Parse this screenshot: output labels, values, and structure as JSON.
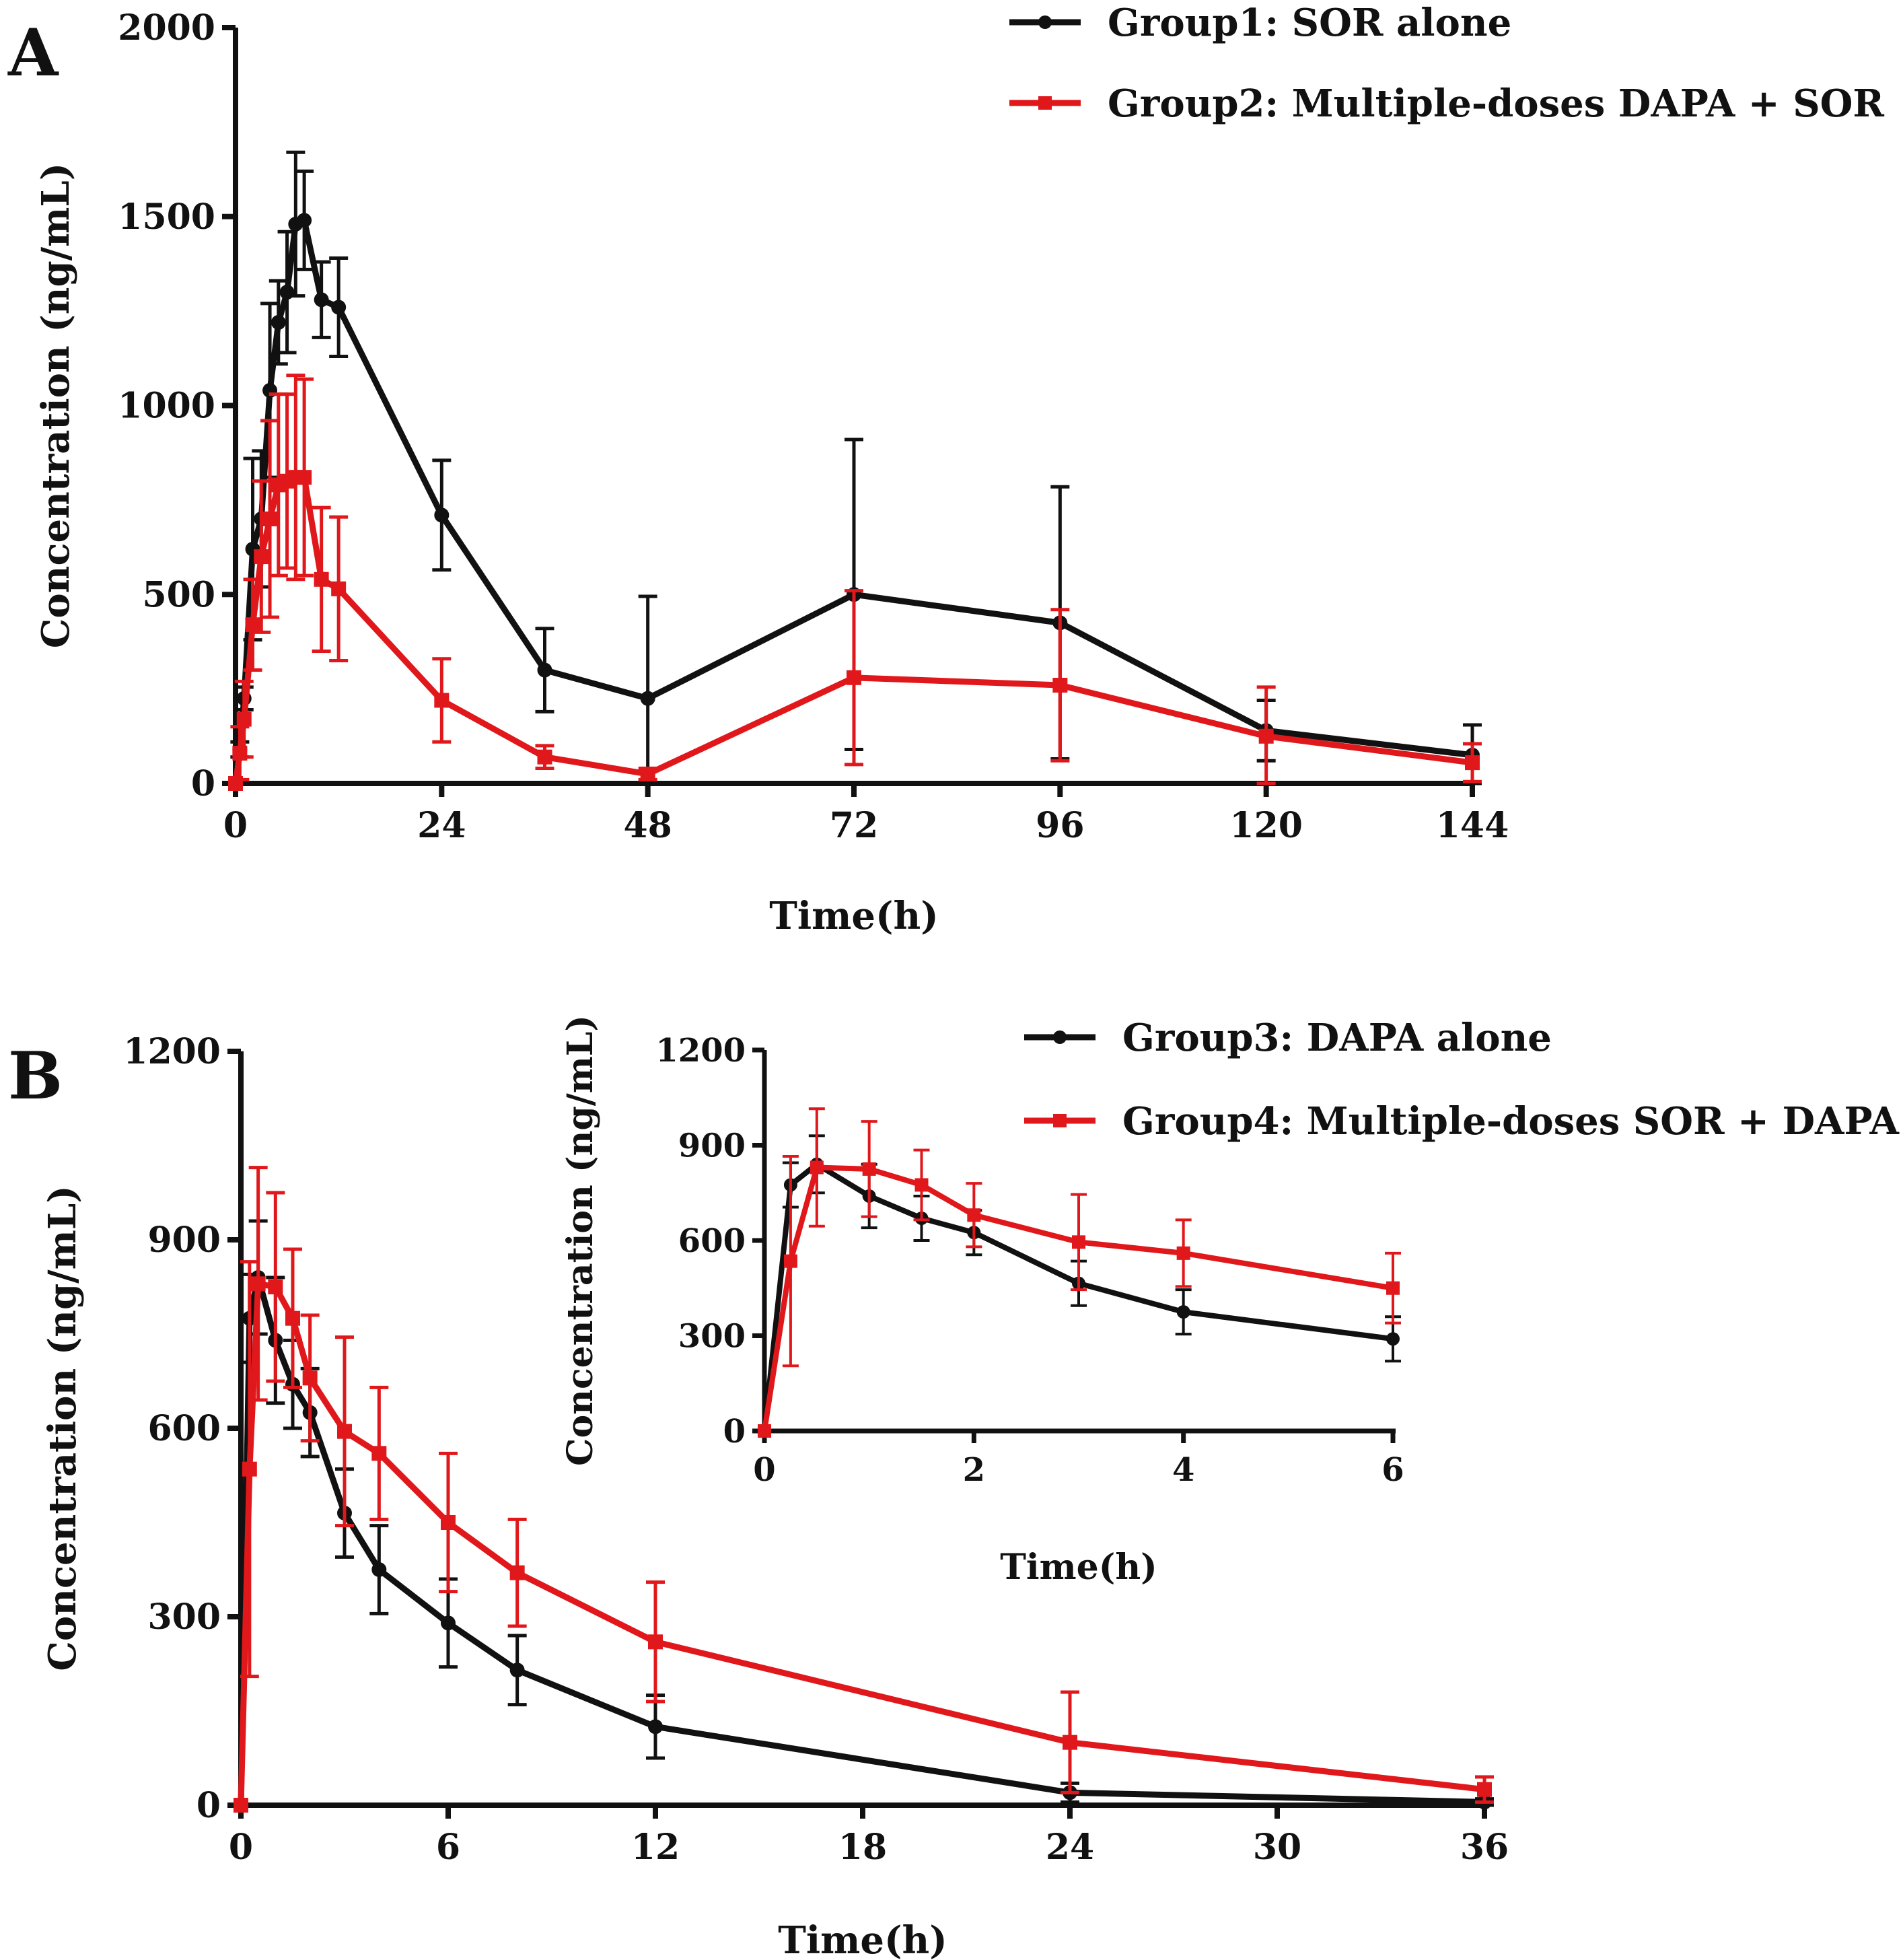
{
  "colors": {
    "black": "#111111",
    "red": "#e0181b"
  },
  "chart_data": [
    {
      "panel": "A",
      "type": "line",
      "xlabel": "Time(h)",
      "ylabel": "Concentration (ng/mL)",
      "xlim": [
        0,
        144
      ],
      "ylim": [
        0,
        2000
      ],
      "xticks": [
        0,
        24,
        48,
        72,
        96,
        120,
        144
      ],
      "yticks": [
        0,
        500,
        1000,
        1500,
        2000
      ],
      "grid": false,
      "legend_position": "top-right",
      "series": [
        {
          "name": "Group1: SOR alone",
          "color": "#111111",
          "marker": "circle",
          "x": [
            0,
            0.5,
            1,
            2,
            3,
            4,
            5,
            6,
            7,
            8,
            10,
            12,
            24,
            36,
            48,
            72,
            96,
            120,
            144
          ],
          "y": [
            0,
            90,
            225,
            620,
            700,
            1040,
            1220,
            1300,
            1480,
            1490,
            1280,
            1260,
            710,
            300,
            225,
            500,
            425,
            140,
            75
          ],
          "err": [
            0,
            20,
            30,
            240,
            180,
            230,
            110,
            160,
            190,
            130,
            100,
            130,
            145,
            110,
            270,
            410,
            360,
            80,
            80
          ]
        },
        {
          "name": "Group2: Multiple-doses DAPA  +  SOR",
          "color": "#e0181b",
          "marker": "square",
          "x": [
            0,
            0.5,
            1,
            2,
            3,
            4,
            5,
            6,
            7,
            8,
            10,
            12,
            24,
            36,
            48,
            72,
            96,
            120,
            144
          ],
          "y": [
            0,
            80,
            170,
            420,
            600,
            700,
            790,
            800,
            810,
            810,
            540,
            515,
            220,
            70,
            25,
            280,
            260,
            125,
            55
          ],
          "err": [
            0,
            70,
            100,
            120,
            200,
            260,
            240,
            230,
            270,
            260,
            190,
            190,
            110,
            30,
            15,
            230,
            200,
            130,
            50
          ]
        }
      ]
    },
    {
      "panel": "B",
      "type": "line",
      "xlabel": "Time(h)",
      "ylabel": "Concentration (ng/mL)",
      "xlim": [
        0,
        36
      ],
      "ylim": [
        0,
        1200
      ],
      "xticks": [
        0,
        6,
        12,
        18,
        24,
        30,
        36
      ],
      "yticks": [
        0,
        300,
        600,
        900,
        1200
      ],
      "grid": false,
      "legend_position": "top-right",
      "series": [
        {
          "name": "Group3: DAPA alone",
          "color": "#111111",
          "marker": "circle",
          "x": [
            0,
            0.25,
            0.5,
            1,
            1.5,
            2,
            3,
            4,
            6,
            8,
            12,
            24,
            36
          ],
          "y": [
            0,
            775,
            840,
            740,
            670,
            625,
            465,
            375,
            290,
            215,
            125,
            20,
            5
          ],
          "err": [
            0,
            70,
            90,
            100,
            70,
            70,
            70,
            70,
            70,
            55,
            50,
            15,
            5
          ]
        },
        {
          "name": "Group4: Multiple-doses SOR + DAPA",
          "color": "#e0181b",
          "marker": "square",
          "x": [
            0,
            0.25,
            0.5,
            1,
            1.5,
            2,
            3,
            4,
            6,
            8,
            12,
            24,
            36
          ],
          "y": [
            0,
            535,
            830,
            825,
            775,
            680,
            595,
            560,
            450,
            370,
            260,
            100,
            25
          ],
          "err": [
            0,
            330,
            185,
            150,
            110,
            100,
            150,
            105,
            110,
            85,
            95,
            80,
            20
          ]
        }
      ]
    },
    {
      "panel": "B-inset",
      "type": "line",
      "xlabel": "Time(h)",
      "ylabel": "Concentration (ng/mL)",
      "xlim": [
        0,
        6
      ],
      "ylim": [
        0,
        1200
      ],
      "xticks": [
        0,
        2,
        4,
        6
      ],
      "yticks": [
        0,
        300,
        600,
        900,
        1200
      ],
      "grid": false,
      "series": [
        {
          "name": "Group3: DAPA alone",
          "color": "#111111",
          "marker": "circle",
          "x": [
            0,
            0.25,
            0.5,
            1,
            1.5,
            2,
            3,
            4,
            6
          ],
          "y": [
            0,
            775,
            840,
            740,
            670,
            625,
            465,
            375,
            290
          ],
          "err": [
            0,
            70,
            90,
            100,
            70,
            70,
            70,
            70,
            70
          ]
        },
        {
          "name": "Group4: Multiple-doses SOR + DAPA",
          "color": "#e0181b",
          "marker": "square",
          "x": [
            0,
            0.25,
            0.5,
            1,
            1.5,
            2,
            3,
            4,
            6
          ],
          "y": [
            0,
            535,
            830,
            825,
            775,
            680,
            595,
            560,
            450
          ],
          "err": [
            0,
            330,
            185,
            150,
            110,
            100,
            150,
            105,
            110
          ]
        }
      ]
    }
  ]
}
